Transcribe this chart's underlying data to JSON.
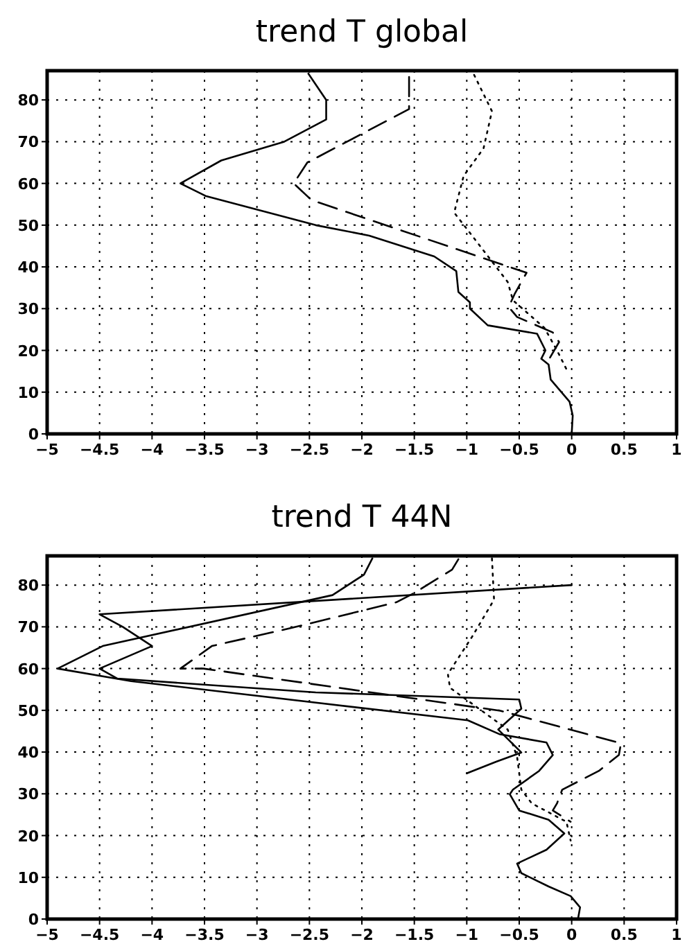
{
  "chart_data": [
    {
      "type": "line",
      "title": "trend T global",
      "xlim": [
        -5,
        1
      ],
      "ylim": [
        0,
        87
      ],
      "xticks": [
        -5,
        -4.5,
        -4,
        -3.5,
        -3,
        -2.5,
        -2,
        -1.5,
        -1,
        -0.5,
        0,
        0.5,
        1
      ],
      "yticks": [
        0,
        10,
        20,
        30,
        40,
        50,
        60,
        70,
        80
      ],
      "grid": true,
      "series": [
        {
          "color": "#000000",
          "line_style": "solid",
          "x": [
            0,
            0.01,
            -0.02,
            -0.2,
            -0.22,
            -0.29,
            -0.25,
            -0.33,
            -0.8,
            -0.97,
            -0.97,
            -1.08,
            -1.1,
            -1.31,
            -1.93,
            -2.44,
            -3.49,
            -3.73,
            -3.34,
            -2.74,
            -2.34,
            -2.34,
            -2.51
          ],
          "values": [
            0,
            4.4,
            7.7,
            13,
            16.6,
            18,
            20,
            24,
            26,
            30,
            31.5,
            34,
            39,
            42.5,
            47.5,
            50,
            57,
            60,
            65.5,
            70,
            75.3,
            80,
            86.3
          ]
        },
        {
          "color": "#000000",
          "line_style": "dashed",
          "x": [
            -1.55,
            -1.55,
            -2.52,
            -2.65,
            -2.48,
            -0.43,
            -0.54,
            -0.6,
            -0.52,
            -0.18,
            -0.12,
            -0.22
          ],
          "values": [
            85.5,
            77.8,
            65,
            60,
            56,
            38.6,
            33.7,
            30.4,
            28,
            24.3,
            22,
            17.7
          ]
        },
        {
          "color": "#000000",
          "line_style": "dotted",
          "x": [
            -0.93,
            -0.76,
            -0.84,
            -1.03,
            -1.12,
            -0.95,
            -0.61,
            -0.56,
            -0.26,
            -0.14,
            -0.05
          ],
          "values": [
            86,
            77.3,
            68.4,
            61.8,
            53,
            47.5,
            36.4,
            32,
            25.4,
            20,
            15.5
          ]
        }
      ]
    },
    {
      "type": "line",
      "title": "trend T 44N",
      "xlim": [
        -5,
        1
      ],
      "ylim": [
        0,
        87
      ],
      "xticks": [
        -5,
        -4.5,
        -4,
        -3.5,
        -3,
        -2.5,
        -2,
        -1.5,
        -1,
        -0.5,
        0,
        0.5,
        1
      ],
      "yticks": [
        0,
        10,
        20,
        30,
        40,
        50,
        60,
        70,
        80
      ],
      "grid": true,
      "series": [
        {
          "color": "#000000",
          "line_style": "solid",
          "x": [
            0,
            -4.5,
            -4.28,
            -4,
            -4.5,
            -4.33,
            -2.44,
            -0.5,
            -0.48,
            -0.7,
            -0.48,
            -0.72,
            -1
          ],
          "values": [
            80,
            73,
            70,
            65.4,
            60,
            57.6,
            54.3,
            52.6,
            50.4,
            45.4,
            39.9,
            37.7,
            34.9
          ]
        },
        {
          "color": "#000000",
          "line_style": "solid",
          "x": [
            -1.9,
            -1.98,
            -2.28,
            -4.47,
            -4.9,
            -4.2,
            -0.99,
            -0.69,
            -0.24,
            -0.18,
            -0.31,
            -0.56,
            -0.59,
            -0.5,
            -0.22,
            -0.07,
            -0.24,
            -0.52,
            -0.48,
            -0.22,
            -0.01,
            0.08,
            0.06
          ],
          "values": [
            86.4,
            82.5,
            77.6,
            65.4,
            60,
            57,
            47.6,
            44.3,
            42.3,
            39.3,
            35.5,
            31,
            29.9,
            26,
            23.8,
            20.5,
            16.6,
            13.3,
            11,
            7.8,
            5.5,
            2.8,
            0
          ]
        },
        {
          "color": "#000000",
          "line_style": "dashed",
          "x": [
            -1.08,
            -1.14,
            -1.5,
            -1.67,
            -2.66,
            -3.43,
            -3.73,
            -3.51,
            -0.68,
            0.47,
            0.45,
            0.26,
            -0.09,
            -0.14,
            -0.18,
            -0.01
          ],
          "values": [
            86.2,
            83.7,
            78.1,
            75.9,
            69.8,
            65.4,
            60,
            60,
            49.9,
            42.1,
            39.3,
            35.5,
            31,
            27.7,
            26,
            23.3
          ]
        },
        {
          "color": "#000000",
          "line_style": "dotted",
          "x": [
            -0.76,
            -0.74,
            -0.95,
            -1.18,
            -1.16,
            -0.61,
            -0.52,
            -0.48,
            -0.38,
            -0.05,
            -0.01
          ],
          "values": [
            86.4,
            76.5,
            67.6,
            58.7,
            55.4,
            45.4,
            38.8,
            31,
            27.7,
            23.3,
            18.8
          ]
        }
      ]
    }
  ]
}
